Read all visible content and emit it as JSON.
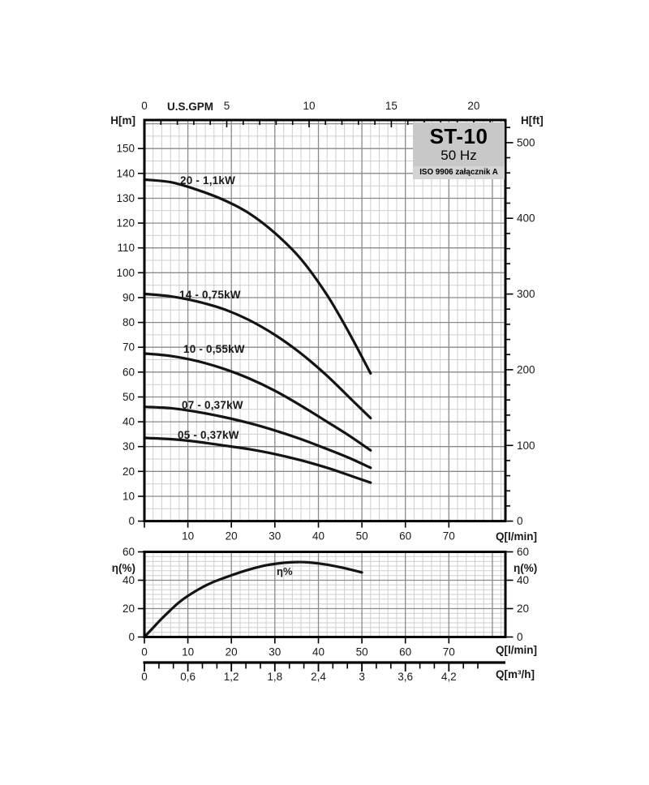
{
  "title_box": {
    "model": "ST-10",
    "frequency": "50 Hz",
    "standard": "ISO 9906 załącznik A",
    "bg": "#c8c8c8"
  },
  "labels": {
    "top_axis": "U.S.GPM",
    "left_axis": "H[m]",
    "right_axis": "H[ft]",
    "flow_lmin": "Q[l/min]",
    "flow_m3h": "Q[m³/h]",
    "eff_axis": "η(%)",
    "eff_curve": "η%"
  },
  "colors": {
    "curve": "#141414",
    "grid_minor": "#cfcfcf",
    "grid_major": "#8a8a8a",
    "border": "#000000",
    "text": "#1a1a1a"
  },
  "chart_data": [
    {
      "id": "head_chart",
      "type": "line",
      "title": "ST-10 50 Hz",
      "xlabel": "Q[l/min]",
      "ylabel": "H[m]",
      "x2label": "U.S.GPM",
      "y2label": "H[ft]",
      "xlim": [
        0,
        83
      ],
      "ylim": [
        0,
        161.5
      ],
      "x_ticks": [
        10,
        20,
        30,
        40,
        50,
        60,
        70
      ],
      "y_ticks": [
        0,
        10,
        20,
        30,
        40,
        50,
        60,
        70,
        80,
        90,
        100,
        110,
        120,
        130,
        140,
        150
      ],
      "x2_ticks": [
        0,
        5,
        10,
        15,
        20
      ],
      "x2_minor_step": 1,
      "y2_ticks": [
        0,
        100,
        200,
        300,
        400,
        500
      ],
      "y2_minor_step": 20,
      "gpm_to_lmin": 3.7854,
      "ft_to_m": 0.3048,
      "grid": {
        "x_minor": 2,
        "x_major": 10,
        "y_minor": 5,
        "y_major": 10
      },
      "legend_position": "on-curve",
      "series": [
        {
          "name": "20 - 1,1kW",
          "points": [
            [
              0,
              137.5
            ],
            [
              6,
              136.5
            ],
            [
              12,
              133.5
            ],
            [
              18,
              129.5
            ],
            [
              24,
              124
            ],
            [
              30,
              116
            ],
            [
              36,
              105.5
            ],
            [
              42,
              91
            ],
            [
              47,
              76
            ],
            [
              52,
              59.5
            ]
          ]
        },
        {
          "name": "14 - 0,75kW",
          "points": [
            [
              0,
              91.5
            ],
            [
              6,
              90.5
            ],
            [
              12,
              88.5
            ],
            [
              18,
              85.5
            ],
            [
              24,
              81
            ],
            [
              30,
              75
            ],
            [
              36,
              67.5
            ],
            [
              42,
              58.5
            ],
            [
              47,
              50
            ],
            [
              52,
              41.5
            ]
          ]
        },
        {
          "name": "10 - 0,55kW",
          "points": [
            [
              0,
              67.5
            ],
            [
              6,
              66.5
            ],
            [
              12,
              64.5
            ],
            [
              18,
              61.5
            ],
            [
              24,
              57.5
            ],
            [
              30,
              52.5
            ],
            [
              36,
              46.5
            ],
            [
              42,
              40
            ],
            [
              47,
              34.5
            ],
            [
              52,
              28.5
            ]
          ]
        },
        {
          "name": "07 - 0,37kW",
          "points": [
            [
              0,
              46
            ],
            [
              6,
              45.5
            ],
            [
              12,
              44
            ],
            [
              18,
              42
            ],
            [
              24,
              39.5
            ],
            [
              30,
              36.5
            ],
            [
              36,
              33
            ],
            [
              42,
              29
            ],
            [
              47,
              25.5
            ],
            [
              52,
              21.5
            ]
          ]
        },
        {
          "name": "05 - 0,37kW",
          "points": [
            [
              0,
              33.5
            ],
            [
              6,
              33
            ],
            [
              12,
              32
            ],
            [
              18,
              30.5
            ],
            [
              24,
              29
            ],
            [
              30,
              27
            ],
            [
              36,
              24.5
            ],
            [
              42,
              21.5
            ],
            [
              47,
              18.5
            ],
            [
              52,
              15.5
            ]
          ]
        }
      ]
    },
    {
      "id": "efficiency_chart",
      "type": "line",
      "xlabel": "Q[l/min]",
      "ylabel": "η(%)",
      "xlim": [
        0,
        83
      ],
      "ylim": [
        0,
        60
      ],
      "x_ticks": [
        0,
        10,
        20,
        30,
        40,
        50,
        60,
        70
      ],
      "y_ticks": [
        0,
        20,
        40,
        60
      ],
      "grid": {
        "x_minor": 2,
        "x_major": 10,
        "y_minor": 3.3333,
        "y_major": 20
      },
      "series": [
        {
          "name": "η%",
          "points": [
            [
              0,
              0
            ],
            [
              2,
              6.5
            ],
            [
              4,
              13
            ],
            [
              6,
              19
            ],
            [
              8,
              24.5
            ],
            [
              10,
              29
            ],
            [
              13,
              34.5
            ],
            [
              16,
              39
            ],
            [
              20,
              43.5
            ],
            [
              24,
              47.5
            ],
            [
              28,
              50.5
            ],
            [
              32,
              52.3
            ],
            [
              35,
              52.8
            ],
            [
              38,
              52.5
            ],
            [
              42,
              51
            ],
            [
              46,
              48.5
            ],
            [
              50,
              45.5
            ]
          ]
        }
      ]
    },
    {
      "id": "m3h_scale",
      "type": "table",
      "label": "Q[m³/h]",
      "ticks": [
        {
          "v": 0,
          "t": "0"
        },
        {
          "v": 0.6,
          "t": "0,6"
        },
        {
          "v": 1.2,
          "t": "1,2"
        },
        {
          "v": 1.8,
          "t": "1,8"
        },
        {
          "v": 2.4,
          "t": "2,4"
        },
        {
          "v": 3,
          "t": "3"
        },
        {
          "v": 3.6,
          "t": "3,6"
        },
        {
          "v": 4.2,
          "t": "4,2"
        }
      ],
      "minor_step": 0.2,
      "lmin_per_m3h": 16.6667
    }
  ]
}
